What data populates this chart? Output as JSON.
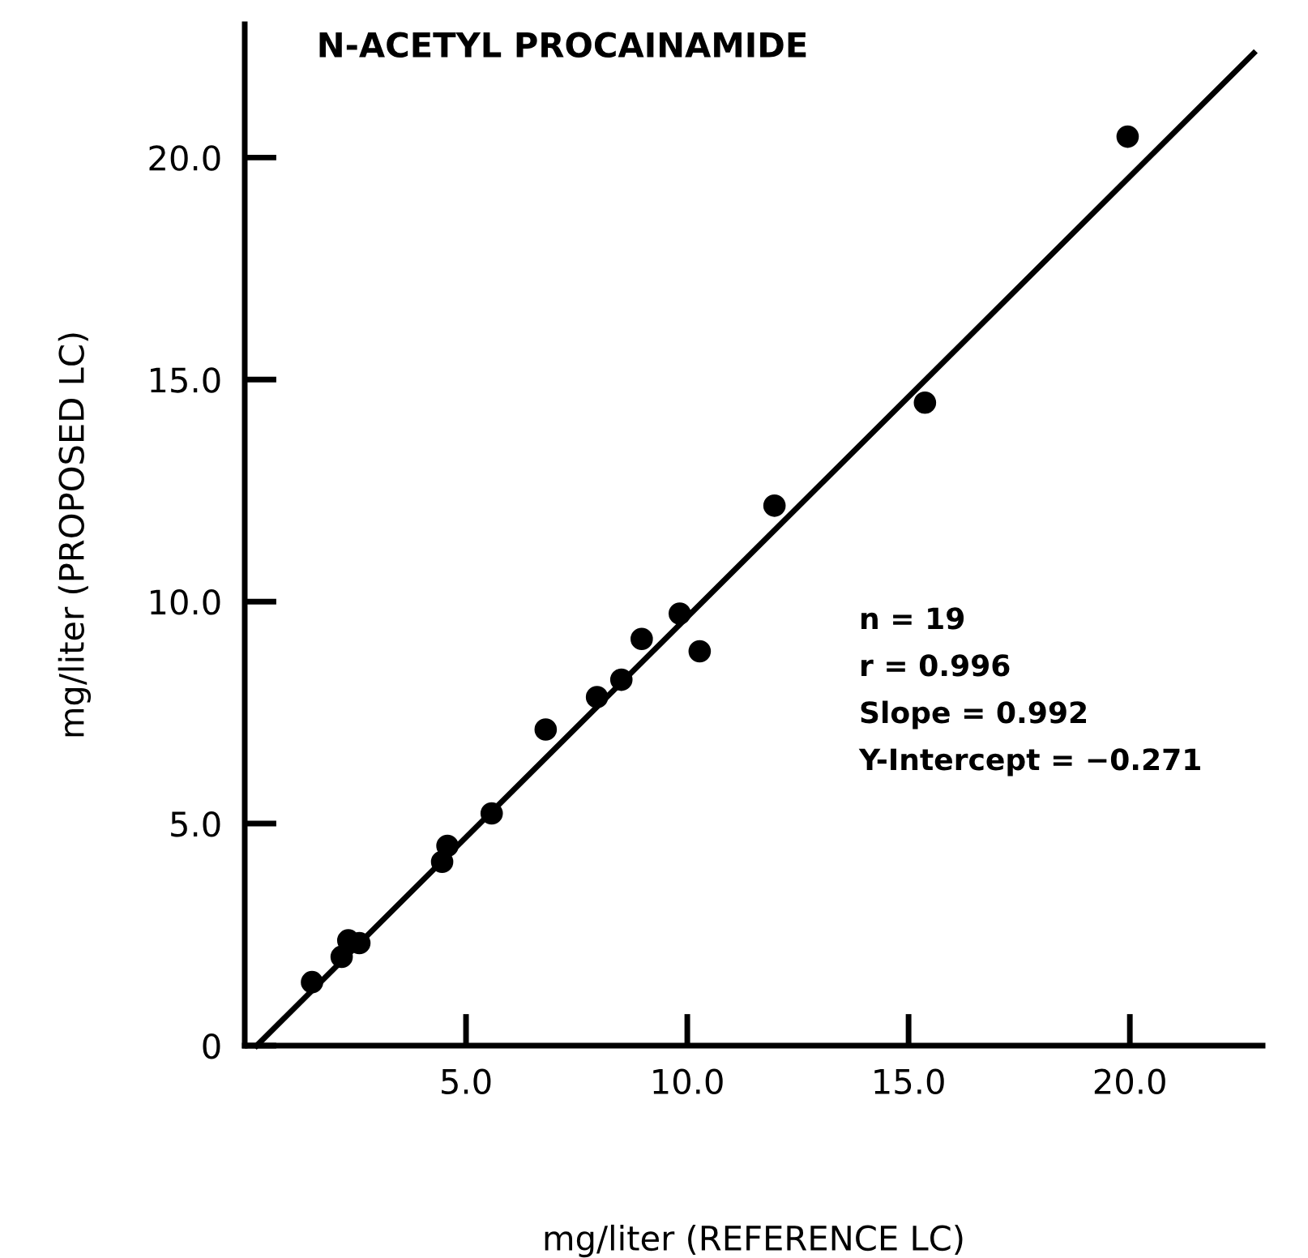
{
  "chart_data": {
    "type": "scatter",
    "title": "N-ACETYL PROCAINAMIDE",
    "xlabel": "mg/liter (REFERENCE LC)",
    "ylabel": "mg/liter (PROPOSED LC)",
    "xlim": [
      0,
      23
    ],
    "ylim": [
      0,
      23
    ],
    "xticks": [
      {
        "value": 5,
        "label": "5.0"
      },
      {
        "value": 10,
        "label": "10.0"
      },
      {
        "value": 15,
        "label": "15.0"
      },
      {
        "value": 20,
        "label": "20.0"
      }
    ],
    "yticks": [
      {
        "value": 0,
        "label": "0"
      },
      {
        "value": 5,
        "label": "5.0"
      },
      {
        "value": 10,
        "label": "10.0"
      },
      {
        "value": 15,
        "label": "15.0"
      },
      {
        "value": 20,
        "label": "20.0"
      }
    ],
    "grid": false,
    "legend": false,
    "series": [
      {
        "marker": "circle",
        "color": "#000000",
        "x": [
          1.52,
          2.19,
          2.34,
          2.59,
          4.46,
          4.58,
          5.58,
          6.8,
          7.96,
          8.51,
          8.97,
          9.83,
          10.28,
          11.97,
          15.37,
          19.95
        ],
        "values": [
          1.43,
          2.0,
          2.37,
          2.31,
          4.14,
          4.5,
          5.23,
          7.12,
          7.85,
          8.24,
          9.16,
          9.73,
          8.88,
          12.16,
          14.48,
          20.47
        ]
      },
      {
        "type": "line",
        "color": "#000000",
        "line_style": "solid",
        "x": [
          0.27,
          22.8
        ],
        "values": [
          0.0,
          22.35
        ]
      }
    ],
    "annotations": [
      "n = 19",
      "r = 0.996",
      "Slope = 0.992",
      "Y-Intercept = −0.271"
    ]
  }
}
